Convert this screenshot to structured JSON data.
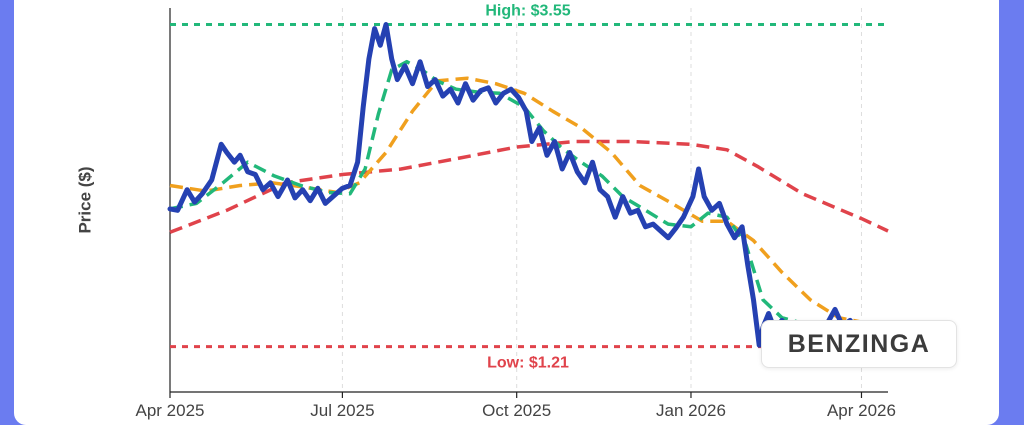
{
  "chart_data": {
    "type": "line",
    "title": "",
    "xlabel": "",
    "ylabel": "Price ($)",
    "x_ticks": [
      {
        "label": "Apr 2025",
        "date": "2025-04-01"
      },
      {
        "label": "Jul 2025",
        "date": "2025-07-01"
      },
      {
        "label": "Oct 2025",
        "date": "2025-10-01"
      },
      {
        "label": "Jan 2026",
        "date": "2026-01-01"
      },
      {
        "label": "Apr 2026",
        "date": "2026-04-01"
      }
    ],
    "x_range": [
      "2025-04-01",
      "2026-04-15"
    ],
    "ylim": [
      0.88,
      3.67
    ],
    "grid": true,
    "annotations": {
      "high": {
        "label": "High: $3.55",
        "value": 3.55,
        "color": "#22b87a"
      },
      "low": {
        "label": "Low: $1.21",
        "value": 1.21,
        "color": "#e0434b"
      }
    },
    "series": [
      {
        "key": "price",
        "color": "#2541b2",
        "points": [
          [
            "2025-04-01",
            2.21
          ],
          [
            "2025-04-05",
            2.2
          ],
          [
            "2025-04-10",
            2.35
          ],
          [
            "2025-04-14",
            2.26
          ],
          [
            "2025-04-18",
            2.32
          ],
          [
            "2025-04-23",
            2.42
          ],
          [
            "2025-04-28",
            2.68
          ],
          [
            "2025-05-01",
            2.62
          ],
          [
            "2025-05-05",
            2.55
          ],
          [
            "2025-05-08",
            2.6
          ],
          [
            "2025-05-12",
            2.48
          ],
          [
            "2025-05-16",
            2.46
          ],
          [
            "2025-05-20",
            2.35
          ],
          [
            "2025-05-24",
            2.4
          ],
          [
            "2025-05-28",
            2.3
          ],
          [
            "2025-06-02",
            2.42
          ],
          [
            "2025-06-06",
            2.29
          ],
          [
            "2025-06-10",
            2.35
          ],
          [
            "2025-06-14",
            2.27
          ],
          [
            "2025-06-18",
            2.36
          ],
          [
            "2025-06-22",
            2.25
          ],
          [
            "2025-06-26",
            2.3
          ],
          [
            "2025-07-01",
            2.36
          ],
          [
            "2025-07-05",
            2.38
          ],
          [
            "2025-07-09",
            2.55
          ],
          [
            "2025-07-12",
            2.95
          ],
          [
            "2025-07-15",
            3.3
          ],
          [
            "2025-07-18",
            3.52
          ],
          [
            "2025-07-21",
            3.4
          ],
          [
            "2025-07-24",
            3.55
          ],
          [
            "2025-07-27",
            3.3
          ],
          [
            "2025-07-30",
            3.15
          ],
          [
            "2025-08-03",
            3.25
          ],
          [
            "2025-08-07",
            3.12
          ],
          [
            "2025-08-11",
            3.28
          ],
          [
            "2025-08-15",
            3.1
          ],
          [
            "2025-08-19",
            3.15
          ],
          [
            "2025-08-23",
            3.03
          ],
          [
            "2025-08-27",
            3.08
          ],
          [
            "2025-08-31",
            2.98
          ],
          [
            "2025-09-04",
            3.12
          ],
          [
            "2025-09-08",
            3.0
          ],
          [
            "2025-09-12",
            3.07
          ],
          [
            "2025-09-16",
            3.09
          ],
          [
            "2025-09-20",
            2.98
          ],
          [
            "2025-09-24",
            3.05
          ],
          [
            "2025-09-28",
            3.08
          ],
          [
            "2025-10-02",
            3.02
          ],
          [
            "2025-10-06",
            2.92
          ],
          [
            "2025-10-09",
            2.7
          ],
          [
            "2025-10-13",
            2.8
          ],
          [
            "2025-10-17",
            2.6
          ],
          [
            "2025-10-21",
            2.7
          ],
          [
            "2025-10-25",
            2.5
          ],
          [
            "2025-10-29",
            2.62
          ],
          [
            "2025-11-02",
            2.48
          ],
          [
            "2025-11-06",
            2.4
          ],
          [
            "2025-11-10",
            2.55
          ],
          [
            "2025-11-14",
            2.35
          ],
          [
            "2025-11-18",
            2.3
          ],
          [
            "2025-11-22",
            2.15
          ],
          [
            "2025-11-26",
            2.3
          ],
          [
            "2025-11-30",
            2.18
          ],
          [
            "2025-12-04",
            2.2
          ],
          [
            "2025-12-08",
            2.08
          ],
          [
            "2025-12-12",
            2.1
          ],
          [
            "2025-12-16",
            2.05
          ],
          [
            "2025-12-20",
            2.0
          ],
          [
            "2025-12-24",
            2.07
          ],
          [
            "2025-12-28",
            2.15
          ],
          [
            "2026-01-02",
            2.3
          ],
          [
            "2026-01-05",
            2.5
          ],
          [
            "2026-01-08",
            2.3
          ],
          [
            "2026-01-12",
            2.2
          ],
          [
            "2026-01-16",
            2.25
          ],
          [
            "2026-01-20",
            2.1
          ],
          [
            "2026-01-24",
            2.0
          ],
          [
            "2026-01-28",
            2.08
          ],
          [
            "2026-01-31",
            1.8
          ],
          [
            "2026-02-03",
            1.55
          ],
          [
            "2026-02-06",
            1.22
          ],
          [
            "2026-02-08",
            1.35
          ],
          [
            "2026-02-11",
            1.45
          ],
          [
            "2026-02-14",
            1.34
          ],
          [
            "2026-02-18",
            1.4
          ],
          [
            "2026-02-22",
            1.33
          ],
          [
            "2026-02-26",
            1.38
          ],
          [
            "2026-03-02",
            1.32
          ],
          [
            "2026-03-06",
            1.36
          ],
          [
            "2026-03-10",
            1.33
          ],
          [
            "2026-03-14",
            1.38
          ],
          [
            "2026-03-18",
            1.48
          ],
          [
            "2026-03-22",
            1.36
          ],
          [
            "2026-03-26",
            1.4
          ],
          [
            "2026-03-30",
            1.33
          ],
          [
            "2026-04-03",
            1.35
          ],
          [
            "2026-04-07",
            1.32
          ],
          [
            "2026-04-11",
            1.36
          ],
          [
            "2026-04-15",
            1.34
          ]
        ]
      },
      {
        "key": "short_ma",
        "color": "#22b87a",
        "points": [
          [
            "2025-04-01",
            2.21
          ],
          [
            "2025-04-15",
            2.25
          ],
          [
            "2025-04-29",
            2.4
          ],
          [
            "2025-05-12",
            2.55
          ],
          [
            "2025-05-26",
            2.45
          ],
          [
            "2025-06-09",
            2.38
          ],
          [
            "2025-06-23",
            2.33
          ],
          [
            "2025-07-05",
            2.32
          ],
          [
            "2025-07-13",
            2.5
          ],
          [
            "2025-07-20",
            2.9
          ],
          [
            "2025-07-27",
            3.22
          ],
          [
            "2025-08-04",
            3.28
          ],
          [
            "2025-08-12",
            3.22
          ],
          [
            "2025-08-20",
            3.14
          ],
          [
            "2025-08-30",
            3.08
          ],
          [
            "2025-09-10",
            3.06
          ],
          [
            "2025-09-22",
            3.05
          ],
          [
            "2025-10-05",
            2.95
          ],
          [
            "2025-10-15",
            2.78
          ],
          [
            "2025-10-25",
            2.65
          ],
          [
            "2025-11-04",
            2.55
          ],
          [
            "2025-11-15",
            2.45
          ],
          [
            "2025-11-26",
            2.3
          ],
          [
            "2025-12-08",
            2.2
          ],
          [
            "2025-12-20",
            2.1
          ],
          [
            "2026-01-01",
            2.08
          ],
          [
            "2026-01-10",
            2.18
          ],
          [
            "2026-01-20",
            2.15
          ],
          [
            "2026-01-30",
            1.95
          ],
          [
            "2026-02-08",
            1.55
          ],
          [
            "2026-02-18",
            1.42
          ],
          [
            "2026-03-01",
            1.38
          ],
          [
            "2026-03-15",
            1.37
          ],
          [
            "2026-04-01",
            1.36
          ],
          [
            "2026-04-15",
            1.34
          ]
        ]
      },
      {
        "key": "mid_ma",
        "color": "#f0a01e",
        "points": [
          [
            "2025-04-01",
            2.38
          ],
          [
            "2025-04-20",
            2.34
          ],
          [
            "2025-05-08",
            2.38
          ],
          [
            "2025-05-25",
            2.4
          ],
          [
            "2025-06-10",
            2.37
          ],
          [
            "2025-06-28",
            2.33
          ],
          [
            "2025-07-10",
            2.4
          ],
          [
            "2025-07-24",
            2.62
          ],
          [
            "2025-08-07",
            2.92
          ],
          [
            "2025-08-20",
            3.14
          ],
          [
            "2025-09-05",
            3.16
          ],
          [
            "2025-09-20",
            3.12
          ],
          [
            "2025-10-05",
            3.05
          ],
          [
            "2025-10-20",
            2.92
          ],
          [
            "2025-11-04",
            2.8
          ],
          [
            "2025-11-20",
            2.62
          ],
          [
            "2025-12-05",
            2.38
          ],
          [
            "2025-12-22",
            2.25
          ],
          [
            "2026-01-07",
            2.12
          ],
          [
            "2026-01-20",
            2.12
          ],
          [
            "2026-02-03",
            1.98
          ],
          [
            "2026-02-18",
            1.75
          ],
          [
            "2026-03-05",
            1.55
          ],
          [
            "2026-03-20",
            1.42
          ],
          [
            "2026-04-15",
            1.35
          ]
        ]
      },
      {
        "key": "long_ma",
        "color": "#e0434b",
        "points": [
          [
            "2025-04-01",
            2.04
          ],
          [
            "2025-05-01",
            2.2
          ],
          [
            "2025-06-01",
            2.4
          ],
          [
            "2025-07-01",
            2.46
          ],
          [
            "2025-08-01",
            2.5
          ],
          [
            "2025-09-01",
            2.58
          ],
          [
            "2025-10-01",
            2.66
          ],
          [
            "2025-11-01",
            2.7
          ],
          [
            "2025-12-01",
            2.7
          ],
          [
            "2026-01-01",
            2.68
          ],
          [
            "2026-01-20",
            2.64
          ],
          [
            "2026-02-05",
            2.52
          ],
          [
            "2026-03-01",
            2.32
          ],
          [
            "2026-04-01",
            2.14
          ],
          [
            "2026-04-15",
            2.05
          ]
        ]
      }
    ]
  },
  "brand": {
    "logo_text": "BENZINGA"
  }
}
